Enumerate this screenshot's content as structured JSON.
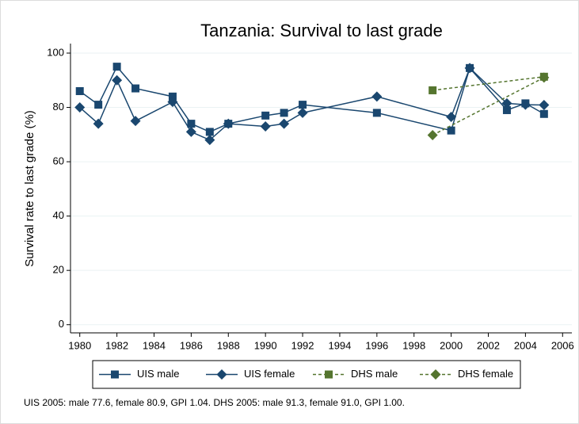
{
  "chart_data": {
    "type": "line",
    "title": "Tanzania: Survival to last grade",
    "y_label": "Survival rate to last grade (%)",
    "note": "UIS 2005: male 77.6, female 80.9, GPI 1.04. DHS 2005: male 91.3, female 91.0, GPI 1.00.",
    "xlim": [
      1979.5,
      2006.5
    ],
    "xticks": [
      1980,
      1982,
      1984,
      1986,
      1988,
      1990,
      1992,
      1994,
      1996,
      1998,
      2000,
      2002,
      2004,
      2006
    ],
    "ylim": [
      -3,
      103.5
    ],
    "yticks": [
      0,
      20,
      40,
      60,
      80,
      100
    ],
    "grid": true,
    "legend": "bottom",
    "series": [
      {
        "name": "UIS male",
        "color": "#1a476f",
        "marker": "square",
        "dash": false,
        "x": [
          1980,
          1981,
          1982,
          1983,
          1985,
          1986,
          1987,
          1988,
          1990,
          1991,
          1992,
          1996,
          2000,
          2001,
          2003,
          2004,
          2005
        ],
        "values": [
          86,
          81,
          95,
          87,
          84,
          74,
          71,
          74,
          77,
          78,
          81,
          78,
          71.5,
          94.5,
          79,
          81.5,
          77.6
        ]
      },
      {
        "name": "UIS female",
        "color": "#1a476f",
        "marker": "diamond",
        "dash": false,
        "x": [
          1980,
          1981,
          1982,
          1983,
          1985,
          1986,
          1987,
          1988,
          1990,
          1991,
          1992,
          1996,
          2000,
          2001,
          2003,
          2004,
          2005
        ],
        "values": [
          80,
          74,
          90,
          75,
          82,
          71,
          68,
          74,
          73,
          74,
          78,
          84,
          76.5,
          94.5,
          81.5,
          81,
          80.9
        ]
      },
      {
        "name": "DHS male",
        "color": "#55752f",
        "marker": "square",
        "dash": true,
        "x": [
          1999,
          2005
        ],
        "values": [
          86.3,
          91.3
        ]
      },
      {
        "name": "DHS female",
        "color": "#55752f",
        "marker": "diamond",
        "dash": true,
        "x": [
          1999,
          2005
        ],
        "values": [
          69.8,
          91.0
        ]
      }
    ]
  }
}
